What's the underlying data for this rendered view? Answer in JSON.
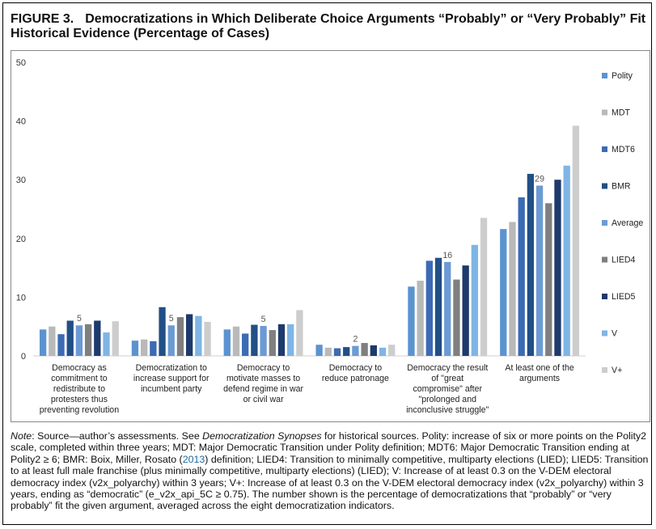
{
  "figure": {
    "number": "FIGURE 3.",
    "title": "Democratizations in Which Deliberate Choice Arguments “Probably” or “Very Probably” Fit Historical Evidence (Percentage of Cases)"
  },
  "chart_data": {
    "type": "bar",
    "title": "",
    "xlabel": "",
    "ylabel": "",
    "ylim": [
      0,
      50
    ],
    "yticks": [
      0,
      10,
      20,
      30,
      40,
      50
    ],
    "grid": false,
    "legend_position": "right",
    "categories": [
      "Democracy as commitment to redistribute to protesters thus preventing revolution",
      "Democratization to increase support for incumbent party",
      "Democracy to motivate masses to defend regime in war or civil war",
      "Democracy to reduce patronage",
      "Democracy the result of \"great compromise\" after \"prolonged and inconclusive struggle\"",
      "At least one of the arguments"
    ],
    "category_lines": [
      [
        "Democracy as",
        "commitment to",
        "redistribute to",
        "protesters thus",
        "preventing revolution"
      ],
      [
        "Democratization to",
        "increase support for",
        "incumbent party"
      ],
      [
        "Democracy to",
        "motivate masses to",
        "defend regime in war",
        "or civil war"
      ],
      [
        "Democracy to",
        "reduce patronage"
      ],
      [
        "Democracy the result",
        "of \"great",
        "compromise\" after",
        "\"prolonged and",
        "inconclusive struggle\""
      ],
      [
        "At least one of the",
        "arguments"
      ]
    ],
    "series": [
      {
        "name": "Polity",
        "color": "#5b93d0",
        "values": [
          4.5,
          2.6,
          4.5,
          1.9,
          11.8,
          21.6
        ]
      },
      {
        "name": "MDT",
        "color": "#b9b9b9",
        "values": [
          5.0,
          2.8,
          5.0,
          1.4,
          12.8,
          22.8
        ]
      },
      {
        "name": "MDT6",
        "color": "#3c6bb5",
        "values": [
          3.7,
          2.5,
          3.8,
          1.3,
          16.2,
          27.0
        ]
      },
      {
        "name": "BMR",
        "color": "#214f86",
        "values": [
          6.0,
          8.3,
          5.3,
          1.5,
          16.7,
          31.0
        ]
      },
      {
        "name": "Average",
        "color": "#6c9ad4",
        "values": [
          5.2,
          5.2,
          5.1,
          1.7,
          16.0,
          29.0
        ]
      },
      {
        "name": "LIED4",
        "color": "#7f7f7f",
        "values": [
          5.4,
          6.6,
          4.4,
          2.2,
          13.0,
          26.0
        ]
      },
      {
        "name": "LIED5",
        "color": "#1d3a6d",
        "values": [
          6.0,
          7.1,
          5.4,
          1.8,
          15.4,
          30.0
        ]
      },
      {
        "name": "V",
        "color": "#7fb5e6",
        "values": [
          4.0,
          6.8,
          5.4,
          1.4,
          18.9,
          32.4
        ]
      },
      {
        "name": "V+",
        "color": "#cdcdcd",
        "values": [
          5.9,
          5.8,
          7.8,
          1.9,
          23.5,
          39.2
        ]
      }
    ],
    "annotations": [
      {
        "category": 0,
        "series": "Average",
        "label": "5"
      },
      {
        "category": 1,
        "series": "Average",
        "label": "5"
      },
      {
        "category": 2,
        "series": "Average",
        "label": "5"
      },
      {
        "category": 3,
        "series": "Average",
        "label": "2"
      },
      {
        "category": 4,
        "series": "Average",
        "label": "16"
      },
      {
        "category": 5,
        "series": "Average",
        "label": "29"
      }
    ]
  },
  "note": {
    "label": "Note",
    "p1": ": Source—author’s assessments. See ",
    "synopses": "Democratization Synopses",
    "p2": " for historical sources. Polity: increase of six or more points on the Polity2 scale, completed within three years; MDT: Major Democratic Transition under Polity definition; MDT6: Major Democratic Transition ending at Polity2 ≥ 6; BMR: Boix, Miller, Rosato (",
    "year": "2013",
    "p3": ") definition; LIED4: Transition to minimally competitive, multiparty elections (LIED); LIED5: Transition to at least full male franchise (plus minimally competitive, multiparty elections) (LIED); V: Increase of at least 0.3 on the V-DEM electoral democracy index (v2x_polyarchy) within 3 years; V+: Increase of at least 0.3 on the V-DEM electoral democracy index (v2x_polyarchy) within 3 years, ending as “democratic” (e_v2x_api_5C ≥ 0.75). The number shown is the percentage of democratizations that “probably” or “very probably” fit the given argument, averaged across the eight democratization indicators."
  }
}
